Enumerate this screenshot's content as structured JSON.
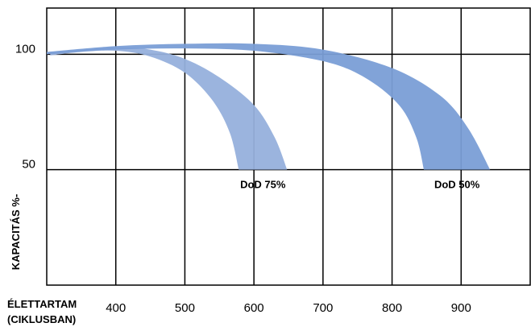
{
  "chart_data": {
    "type": "area",
    "xlabel_lines": [
      "ÉLETTARTAM",
      "(CIKLUSBAN)"
    ],
    "ylabel": "KAPACITÁS %-",
    "x_ticks": [
      400,
      500,
      600,
      700,
      800,
      900
    ],
    "y_ticks": [
      100,
      50
    ],
    "xlim": [
      300,
      1000
    ],
    "ylim": [
      0,
      120
    ],
    "grid": true,
    "series": [
      {
        "name": "DoD 75%",
        "color": "#96b0dc",
        "upper": [
          [
            305,
            101
          ],
          [
            350,
            102
          ],
          [
            400,
            103
          ],
          [
            450,
            102
          ],
          [
            500,
            98
          ],
          [
            550,
            90
          ],
          [
            600,
            78
          ],
          [
            630,
            64
          ],
          [
            648,
            50
          ]
        ],
        "lower": [
          [
            305,
            99.5
          ],
          [
            350,
            101
          ],
          [
            400,
            101.5
          ],
          [
            450,
            99
          ],
          [
            500,
            92
          ],
          [
            540,
            80
          ],
          [
            565,
            66
          ],
          [
            578,
            50
          ]
        ]
      },
      {
        "name": "DoD 50%",
        "color": "#7a9ed6",
        "upper": [
          [
            300,
            101
          ],
          [
            400,
            103.5
          ],
          [
            500,
            104.5
          ],
          [
            600,
            104.5
          ],
          [
            700,
            102
          ],
          [
            800,
            94
          ],
          [
            870,
            82
          ],
          [
            910,
            68
          ],
          [
            942,
            50
          ]
        ],
        "lower": [
          [
            300,
            100
          ],
          [
            400,
            102
          ],
          [
            500,
            102.5
          ],
          [
            600,
            101.5
          ],
          [
            700,
            97
          ],
          [
            760,
            90
          ],
          [
            810,
            78
          ],
          [
            835,
            64
          ],
          [
            846,
            50
          ]
        ]
      }
    ]
  }
}
